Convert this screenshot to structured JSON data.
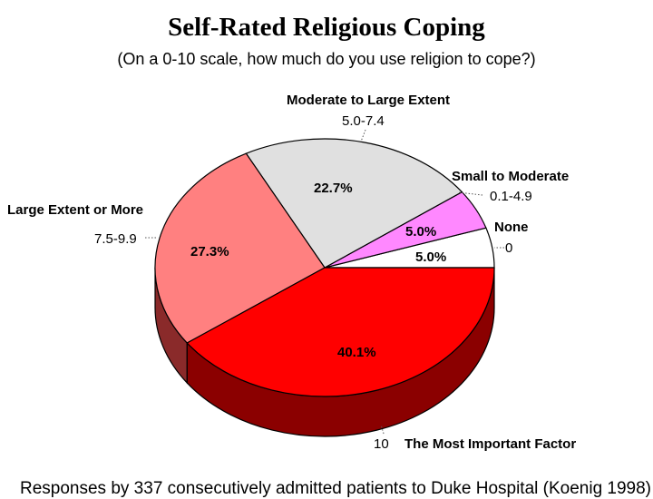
{
  "chart_data": {
    "type": "pie",
    "title": "Self-Rated Religious Coping",
    "subtitle": "(On a 0-10 scale, how much do you use religion to cope?)",
    "three_d": true,
    "slices": [
      {
        "category": "None",
        "range": "0",
        "value": 5.0,
        "value_label": "5.0%",
        "color": "#ffffff",
        "side_color": "#d8d8d8"
      },
      {
        "category": "Small to Moderate",
        "range": "0.1-4.9",
        "value": 5.0,
        "value_label": "5.0%",
        "color": "#ff88ff",
        "side_color": "#c060c0"
      },
      {
        "category": "Moderate to Large Extent",
        "range": "5.0-7.4",
        "value": 22.7,
        "value_label": "22.7%",
        "color": "#e0e0e0",
        "side_color": "#a8a8a8"
      },
      {
        "category": "Large Extent or More",
        "range": "7.5-9.9",
        "value": 27.3,
        "value_label": "27.3%",
        "color": "#ff8080",
        "side_color": "#8a2a2a"
      },
      {
        "category": "The Most Important Factor",
        "range": "10",
        "value": 40.1,
        "value_label": "40.1%",
        "color": "#ff0000",
        "side_color": "#8b0000"
      }
    ],
    "footnote": "Responses by 337 consecutively admitted patients to Duke Hospital (Koenig 1998)"
  }
}
